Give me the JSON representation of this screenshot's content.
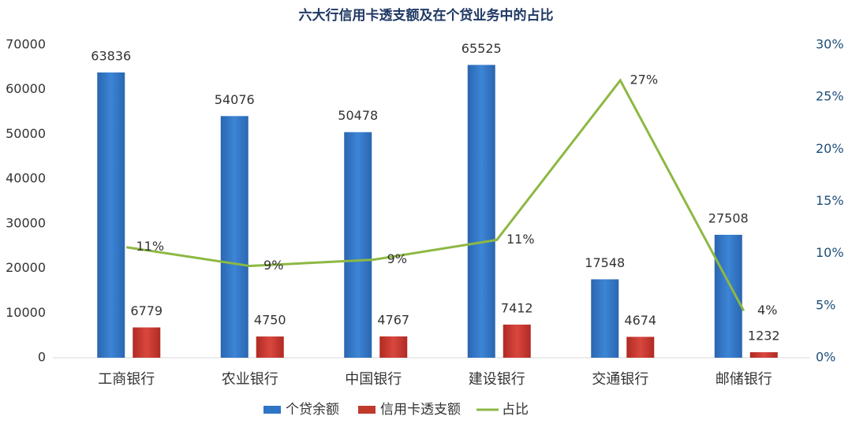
{
  "chart_data": {
    "type": "bar",
    "title": "六大行信用卡透支额及在个贷业务中的占比",
    "categories": [
      "工商银行",
      "农业银行",
      "中国银行",
      "建设银行",
      "交通银行",
      "邮储银行"
    ],
    "series": [
      {
        "name": "个贷余额",
        "color": "#2e75c6",
        "values": [
          63836,
          54076,
          50478,
          65525,
          17548,
          27508
        ]
      },
      {
        "name": "信用卡透支额",
        "color": "#c0392b",
        "values": [
          6779,
          4750,
          4767,
          7412,
          4674,
          1232
        ]
      },
      {
        "name": "占比",
        "color": "#8db843",
        "axis": "y2",
        "values": [
          10.6,
          8.8,
          9.4,
          11.3,
          26.6,
          4.5
        ],
        "value_labels": [
          "11%",
          "9%",
          "9%",
          "11%",
          "27%",
          "4%"
        ]
      }
    ],
    "ylim": [
      0,
      70000
    ],
    "yticks": [
      0,
      10000,
      20000,
      30000,
      40000,
      50000,
      60000,
      70000
    ],
    "y2lim": [
      0,
      30
    ],
    "y2ticks": [
      {
        "value": 0,
        "label": "0%"
      },
      {
        "value": 5,
        "label": "5%"
      },
      {
        "value": 10,
        "label": "10%"
      },
      {
        "value": 15,
        "label": "15%"
      },
      {
        "value": 20,
        "label": "20%"
      },
      {
        "value": 25,
        "label": "25%"
      },
      {
        "value": 30,
        "label": "30%"
      }
    ]
  }
}
